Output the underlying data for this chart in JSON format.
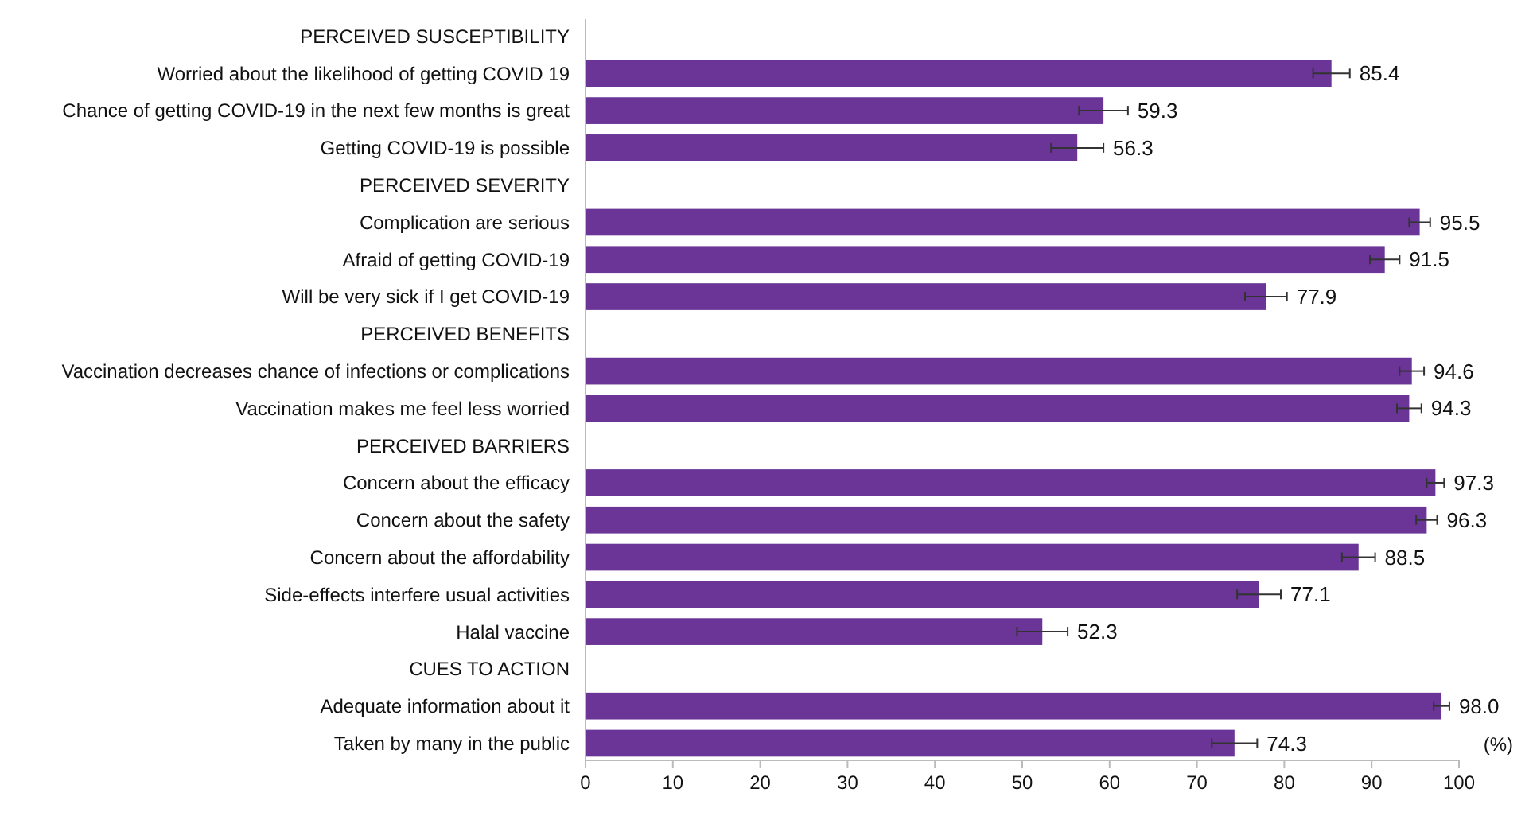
{
  "chart_data": {
    "type": "bar",
    "orientation": "horizontal",
    "xlabel": "(%)",
    "categories": [
      "PERCEIVED SUSCEPTIBILITY",
      "Worried about the likelihood of getting COVID 19",
      "Chance of getting COVID-19 in the next few months is great",
      "Getting COVID-19 is possible",
      "PERCEIVED SEVERITY",
      "Complication are serious",
      "Afraid of getting COVID-19",
      "Will be very sick if I get COVID-19",
      "PERCEIVED BENEFITS",
      "Vaccination decreases chance of infections or complications",
      "Vaccination makes me feel less worried",
      "PERCEIVED BARRIERS",
      "Concern about the efficacy",
      "Concern about the safety",
      "Concern about the affordability",
      "Side-effects interfere usual activities",
      "Halal vaccine",
      "CUES TO ACTION",
      "Adequate information about it",
      "Taken by many in the public"
    ],
    "values": [
      null,
      85.4,
      59.3,
      56.3,
      null,
      95.5,
      91.5,
      77.9,
      null,
      94.6,
      94.3,
      null,
      97.3,
      96.3,
      88.5,
      77.1,
      52.3,
      null,
      98.0,
      74.3
    ],
    "value_labels": [
      null,
      "85.4",
      "59.3",
      "56.3",
      null,
      "95.5",
      "91.5",
      "77.9",
      null,
      "94.6",
      "94.3",
      null,
      "97.3",
      "96.3",
      "88.5",
      "77.1",
      "52.3",
      null,
      "98.0",
      "74.3"
    ],
    "errors": [
      null,
      2.1,
      2.8,
      3,
      null,
      1.2,
      1.7,
      2.4,
      null,
      1.4,
      1.4,
      null,
      1,
      1.2,
      1.9,
      2.5,
      2.9,
      null,
      0.9,
      2.6
    ],
    "color": "#6a3596",
    "xlim": [
      0,
      100
    ],
    "xticks": [
      0,
      10,
      20,
      30,
      40,
      50,
      60,
      70,
      80,
      90,
      100
    ],
    "grid": false
  }
}
